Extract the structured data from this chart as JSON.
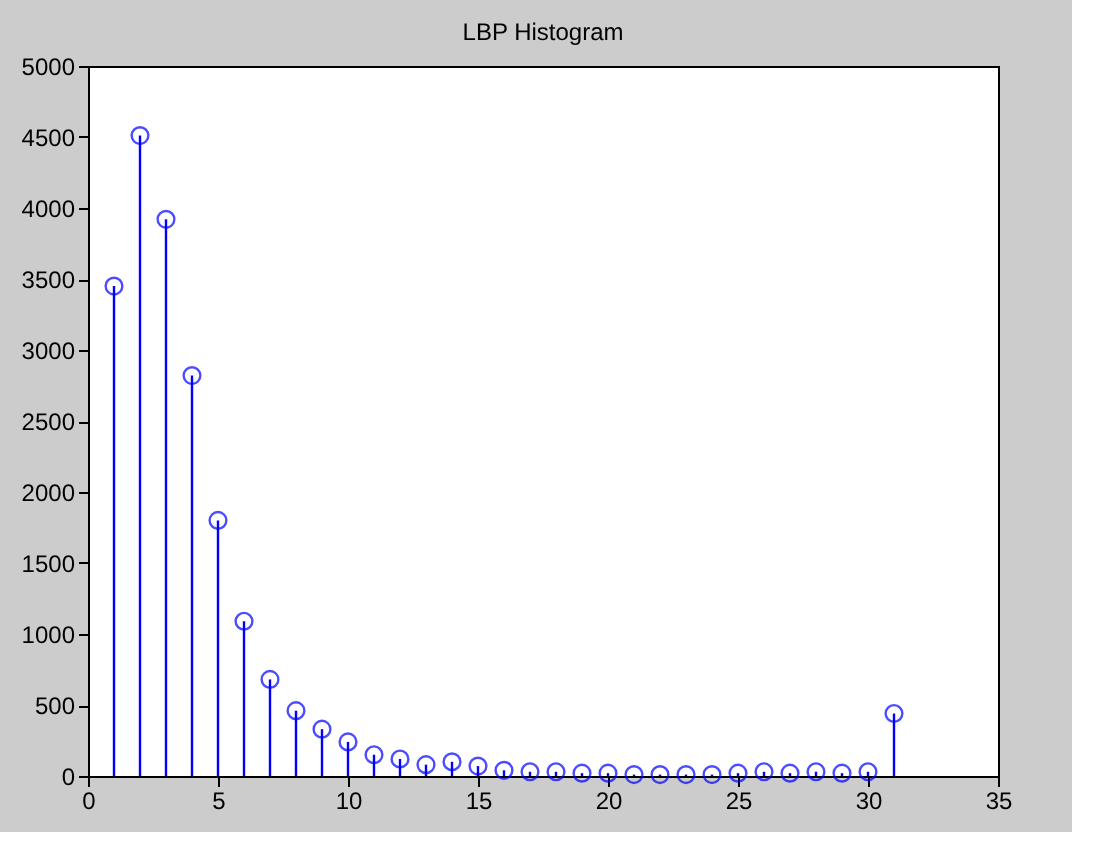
{
  "chart_data": {
    "type": "lollipop",
    "title": "LBP Histogram",
    "x": [
      1,
      2,
      3,
      4,
      5,
      6,
      7,
      8,
      9,
      10,
      11,
      12,
      13,
      14,
      15,
      16,
      17,
      18,
      19,
      20,
      21,
      22,
      23,
      24,
      25,
      26,
      27,
      28,
      29,
      30,
      31
    ],
    "values": [
      3450,
      4510,
      3920,
      2820,
      1800,
      1090,
      680,
      460,
      330,
      240,
      150,
      120,
      80,
      100,
      70,
      40,
      30,
      30,
      20,
      20,
      10,
      10,
      10,
      10,
      20,
      30,
      20,
      30,
      20,
      30,
      440
    ],
    "color": "#0000ff",
    "marker": "circle",
    "xlim": [
      0,
      35
    ],
    "xticks": [
      0,
      5,
      10,
      15,
      20,
      25,
      30,
      35
    ],
    "ylim": [
      0,
      5000
    ],
    "yticks": [
      0,
      500,
      1000,
      1500,
      2000,
      2500,
      3000,
      3500,
      4000,
      4500,
      5000
    ],
    "grid": false
  }
}
